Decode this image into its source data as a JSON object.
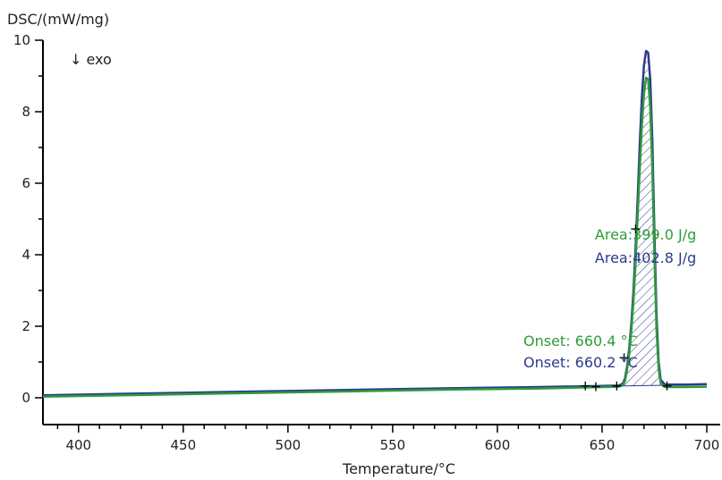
{
  "chart_data": {
    "type": "line",
    "xlabel": "Temperature/°C",
    "ylabel": "DSC/(mW/mg)",
    "direction_label": "↓ exo",
    "xlim": [
      383,
      700
    ],
    "ylim": [
      -0.75,
      10
    ],
    "x_ticks": [
      400,
      450,
      500,
      550,
      600,
      650,
      700
    ],
    "x_minor_step": 10,
    "y_ticks": [
      0,
      2,
      4,
      6,
      8,
      10
    ],
    "y_minor_step": 1,
    "series": [
      {
        "color": "#2d3a8c",
        "x": [
          383,
          420,
          460,
          500,
          540,
          580,
          620,
          650,
          658,
          660,
          661,
          662,
          663,
          664,
          665,
          666,
          667,
          668,
          669,
          670,
          671,
          672,
          673,
          674,
          675,
          676,
          677,
          678,
          680,
          690,
          700
        ],
        "y": [
          0.07,
          0.11,
          0.15,
          0.19,
          0.23,
          0.27,
          0.3,
          0.33,
          0.34,
          0.4,
          0.55,
          0.9,
          1.4,
          2.1,
          3.0,
          4.2,
          5.6,
          7.1,
          8.4,
          9.3,
          9.7,
          9.65,
          8.9,
          7.2,
          4.6,
          2.3,
          1.0,
          0.5,
          0.37,
          0.37,
          0.38
        ]
      },
      {
        "color": "#2e9b3a",
        "x": [
          383,
          420,
          460,
          500,
          540,
          580,
          620,
          650,
          658,
          660,
          661,
          662,
          663,
          664,
          665,
          666,
          667,
          668,
          669,
          670,
          671,
          672,
          673,
          674,
          675,
          676,
          677,
          678,
          680,
          690,
          700
        ],
        "y": [
          0.03,
          0.07,
          0.11,
          0.15,
          0.19,
          0.23,
          0.26,
          0.3,
          0.31,
          0.35,
          0.48,
          0.8,
          1.25,
          1.9,
          2.7,
          3.8,
          5.1,
          6.4,
          7.6,
          8.5,
          8.95,
          8.9,
          8.1,
          6.4,
          4.0,
          1.9,
          0.8,
          0.4,
          0.3,
          0.3,
          0.31
        ]
      }
    ],
    "peak_baseline": {
      "x": [
        660,
        681
      ],
      "y": [
        0.33,
        0.35
      ]
    },
    "markers": [
      {
        "x": 642,
        "y": 0.33
      },
      {
        "x": 647,
        "y": 0.31
      },
      {
        "x": 657,
        "y": 0.33
      },
      {
        "x": 660.5,
        "y": 1.12
      },
      {
        "x": 666,
        "y": 4.72
      },
      {
        "x": 681,
        "y": 0.33
      }
    ],
    "annotations": [
      {
        "text": "Area:399.0 J/g",
        "color": "#2e9b3a",
        "anchor_x": 695,
        "anchor_y": 4.42
      },
      {
        "text": "Area:402.8 J/g",
        "color": "#2d3a8c",
        "anchor_x": 695,
        "anchor_y": 3.77
      },
      {
        "text": "Onset: 660.4 °C",
        "color": "#2e9b3a",
        "anchor_x": 667,
        "anchor_y": 1.45
      },
      {
        "text": "Onset: 660.2 °C",
        "color": "#2d3a8c",
        "anchor_x": 667,
        "anchor_y": 0.85
      }
    ],
    "grid": false,
    "legend": "none"
  }
}
